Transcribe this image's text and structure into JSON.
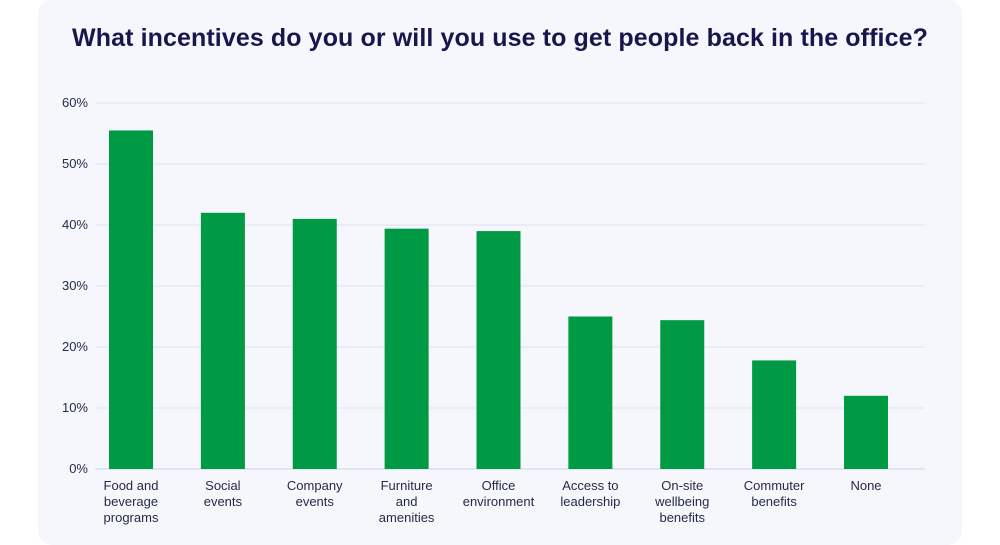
{
  "chart_data": {
    "type": "bar",
    "title": "What incentives do you or will you use to get people back in the office?",
    "categories": [
      [
        "Food and",
        "beverage",
        "programs"
      ],
      [
        "Social",
        "events"
      ],
      [
        "Company",
        "events"
      ],
      [
        "Furniture",
        "and",
        "amenities"
      ],
      [
        "Office",
        "environment"
      ],
      [
        "Access to",
        "leadership"
      ],
      [
        "On-site",
        "wellbeing",
        "benefits"
      ],
      [
        "Commuter",
        "benefits"
      ],
      [
        "None"
      ]
    ],
    "values": [
      55.5,
      42,
      41,
      39.4,
      39,
      25,
      24.4,
      17.8,
      12
    ],
    "ylim": [
      0,
      60
    ],
    "yticks": [
      0,
      10,
      20,
      30,
      40,
      50,
      60
    ],
    "ytick_labels": [
      "0%",
      "10%",
      "20%",
      "30%",
      "40%",
      "50%",
      "60%"
    ],
    "xlabel": "",
    "ylabel": "",
    "grid": true,
    "colors": {
      "bar": "#009944",
      "grid": "#dfe3ee",
      "axis": "#c9d3ef",
      "text": "#1f2a44",
      "title": "#17174b"
    }
  }
}
